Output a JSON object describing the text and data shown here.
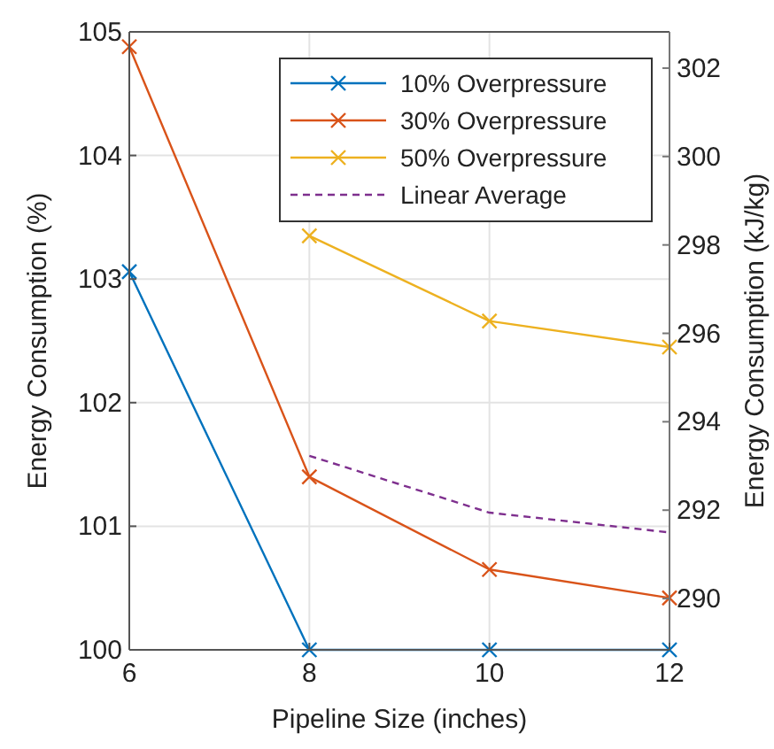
{
  "chart_data": {
    "type": "line",
    "xlabel": "Pipeline Size (inches)",
    "ylabel": "Energy Consumption (%)",
    "y2label": "Energy Consumption (kJ/kg)",
    "x": [
      6,
      8,
      10,
      12
    ],
    "xlim": [
      6,
      12
    ],
    "xticks": [
      6,
      8,
      10,
      12
    ],
    "ylim": [
      100,
      105
    ],
    "yticks": [
      100,
      101,
      102,
      103,
      104,
      105
    ],
    "y2lim": [
      288.84,
      302.82
    ],
    "y2ticks": [
      290,
      292,
      294,
      296,
      298,
      300,
      302
    ],
    "grid": true,
    "legend": "top right",
    "marker": "cross",
    "series": [
      {
        "name": "10% Overpressure",
        "color": "#0072bd",
        "values": [
          103.06,
          100,
          100,
          100
        ]
      },
      {
        "name": "30% Overpressure",
        "color": "#d95319",
        "values": [
          104.88,
          101.4,
          100.65,
          100.42
        ]
      },
      {
        "name": "50% Overpressure",
        "color": "#edb120",
        "values": [
          null,
          103.35,
          102.66,
          102.45
        ]
      },
      {
        "name": "Linear Average",
        "color": "#7e2f8e",
        "values": [
          null,
          101.57,
          101.11,
          100.95
        ],
        "line_style": "dashed",
        "marker": "none"
      }
    ]
  }
}
